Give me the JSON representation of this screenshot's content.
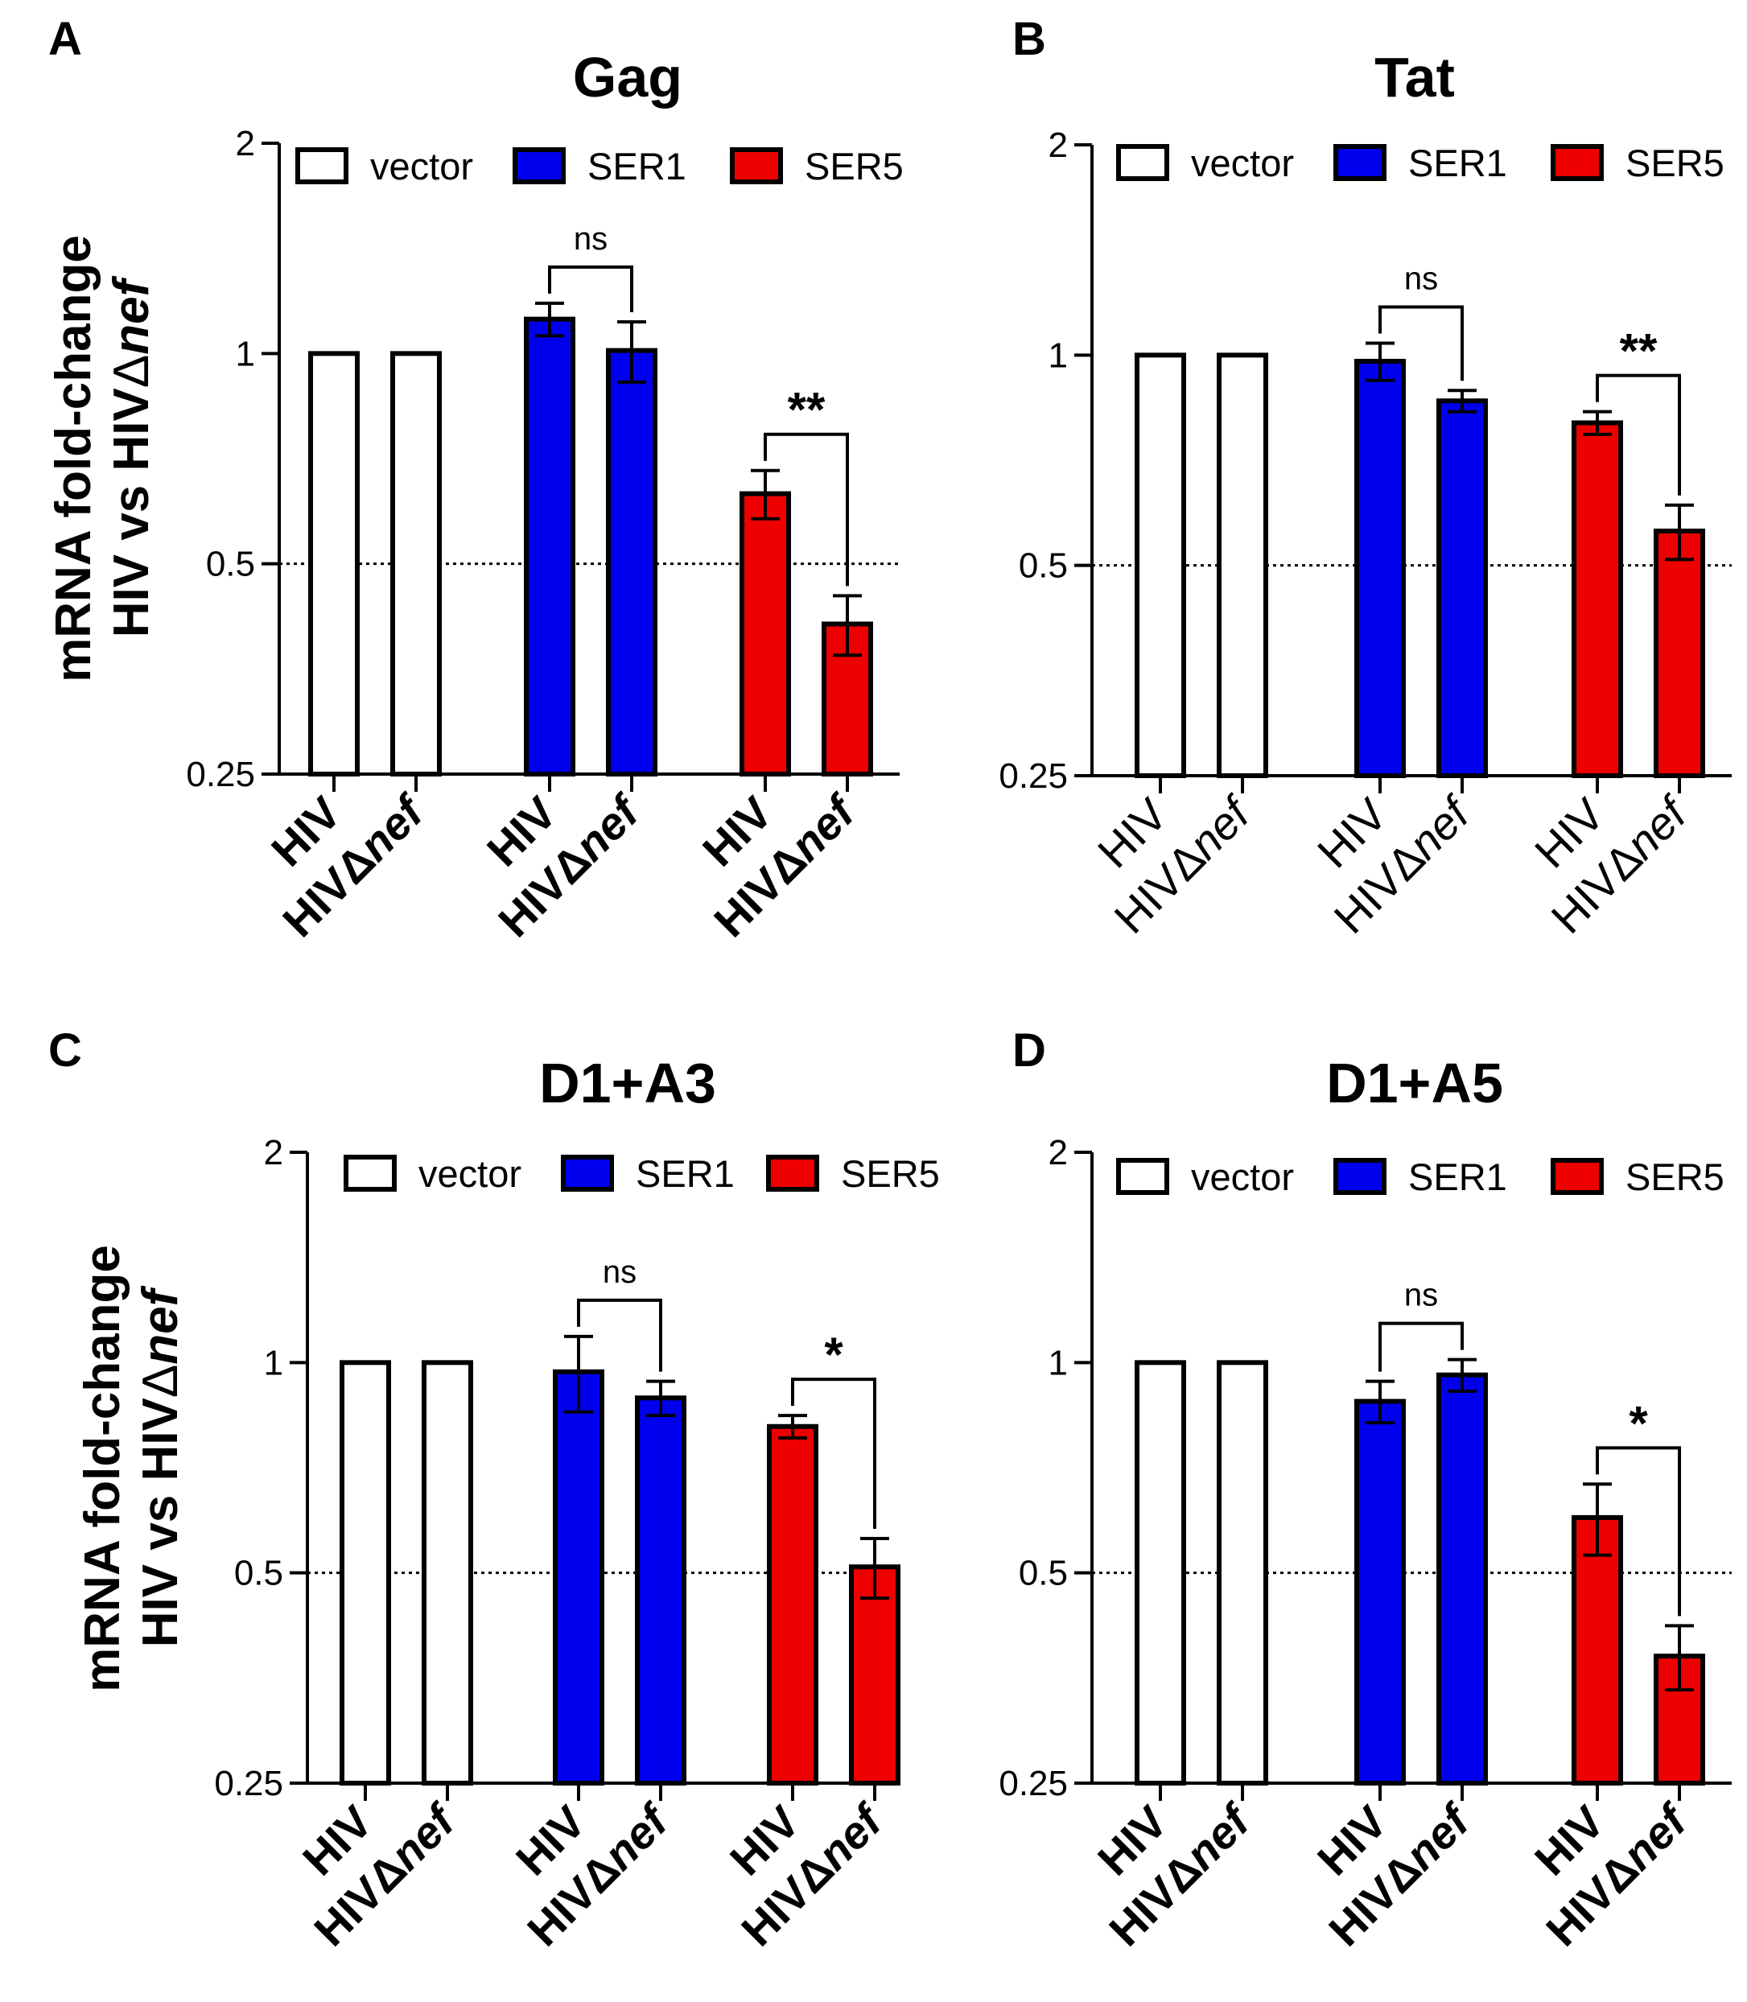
{
  "figure": {
    "ylabel_line1": "mRNA fold-change",
    "ylabel_line2_prefix": "HIV vs HIV",
    "ylabel_line2_suffix": "nef",
    "delta_symbol": "Δ",
    "colors": {
      "vector": "#ffffff",
      "SER1": "#0000ee",
      "SER5": "#ee0000",
      "stroke": "#000000"
    }
  },
  "chart_data": [
    {
      "panel_letter": "A",
      "type": "bar",
      "title": "Gag",
      "yscale": "log2",
      "ylim": [
        0.25,
        2
      ],
      "yticks": [
        "0.25",
        "0.5",
        "1",
        "2"
      ],
      "reference_line": 0.5,
      "bold_xlabels": true,
      "legend": [
        "vector",
        "SER1",
        "SER5"
      ],
      "groups": [
        "vector",
        "SER1",
        "SER5"
      ],
      "categories": [
        "HIV",
        "HIVΔnef"
      ],
      "series": [
        {
          "name": "vector",
          "values": [
            1.0,
            1.0
          ],
          "errors": [
            0,
            0
          ]
        },
        {
          "name": "SER1",
          "values": [
            1.12,
            1.01
          ],
          "errors": [
            0.06,
            0.1
          ]
        },
        {
          "name": "SER5",
          "values": [
            0.63,
            0.41
          ],
          "errors": [
            0.05,
            0.04
          ]
        }
      ],
      "significance": [
        {
          "group": "SER1",
          "label": "ns"
        },
        {
          "group": "SER5",
          "label": "**"
        }
      ]
    },
    {
      "panel_letter": "B",
      "type": "bar",
      "title": "Tat",
      "yscale": "log2",
      "ylim": [
        0.25,
        2
      ],
      "yticks": [
        "0.25",
        "0.5",
        "1",
        "2"
      ],
      "reference_line": 0.5,
      "bold_xlabels": false,
      "legend": [
        "vector",
        "SER1",
        "SER5"
      ],
      "groups": [
        "vector",
        "SER1",
        "SER5"
      ],
      "categories": [
        "HIV",
        "HIVΔnef"
      ],
      "series": [
        {
          "name": "vector",
          "values": [
            1.0,
            1.0
          ],
          "errors": [
            0,
            0
          ]
        },
        {
          "name": "SER1",
          "values": [
            0.98,
            0.86
          ],
          "errors": [
            0.06,
            0.03
          ]
        },
        {
          "name": "SER5",
          "values": [
            0.8,
            0.56
          ],
          "errors": [
            0.03,
            0.05
          ]
        }
      ],
      "significance": [
        {
          "group": "SER1",
          "label": "ns"
        },
        {
          "group": "SER5",
          "label": "**"
        }
      ]
    },
    {
      "panel_letter": "C",
      "type": "bar",
      "title": "D1+A3",
      "yscale": "log2",
      "ylim": [
        0.25,
        2
      ],
      "yticks": [
        "0.25",
        "0.5",
        "1",
        "2"
      ],
      "reference_line": 0.5,
      "bold_xlabels": true,
      "legend": [
        "vector",
        "SER1",
        "SER5"
      ],
      "groups": [
        "vector",
        "SER1",
        "SER5"
      ],
      "categories": [
        "HIV",
        "HIVΔnef"
      ],
      "series": [
        {
          "name": "vector",
          "values": [
            1.0,
            1.0
          ],
          "errors": [
            0,
            0
          ]
        },
        {
          "name": "SER1",
          "values": [
            0.97,
            0.89
          ],
          "errors": [
            0.12,
            0.05
          ]
        },
        {
          "name": "SER5",
          "values": [
            0.81,
            0.51
          ],
          "errors": [
            0.03,
            0.05
          ]
        }
      ],
      "significance": [
        {
          "group": "SER1",
          "label": "ns"
        },
        {
          "group": "SER5",
          "label": "*"
        }
      ]
    },
    {
      "panel_letter": "D",
      "type": "bar",
      "title": "D1+A5",
      "yscale": "log2",
      "ylim": [
        0.25,
        2
      ],
      "yticks": [
        "0.25",
        "0.5",
        "1",
        "2"
      ],
      "reference_line": 0.5,
      "bold_xlabels": true,
      "legend": [
        "vector",
        "SER1",
        "SER5"
      ],
      "groups": [
        "vector",
        "SER1",
        "SER5"
      ],
      "categories": [
        "HIV",
        "HIVΔnef"
      ],
      "series": [
        {
          "name": "vector",
          "values": [
            1.0,
            1.0
          ],
          "errors": [
            0,
            0
          ]
        },
        {
          "name": "SER1",
          "values": [
            0.88,
            0.96
          ],
          "errors": [
            0.06,
            0.05
          ]
        },
        {
          "name": "SER5",
          "values": [
            0.6,
            0.38
          ],
          "errors": [
            0.07,
            0.04
          ]
        }
      ],
      "significance": [
        {
          "group": "SER1",
          "label": "ns"
        },
        {
          "group": "SER5",
          "label": "*"
        }
      ]
    }
  ]
}
